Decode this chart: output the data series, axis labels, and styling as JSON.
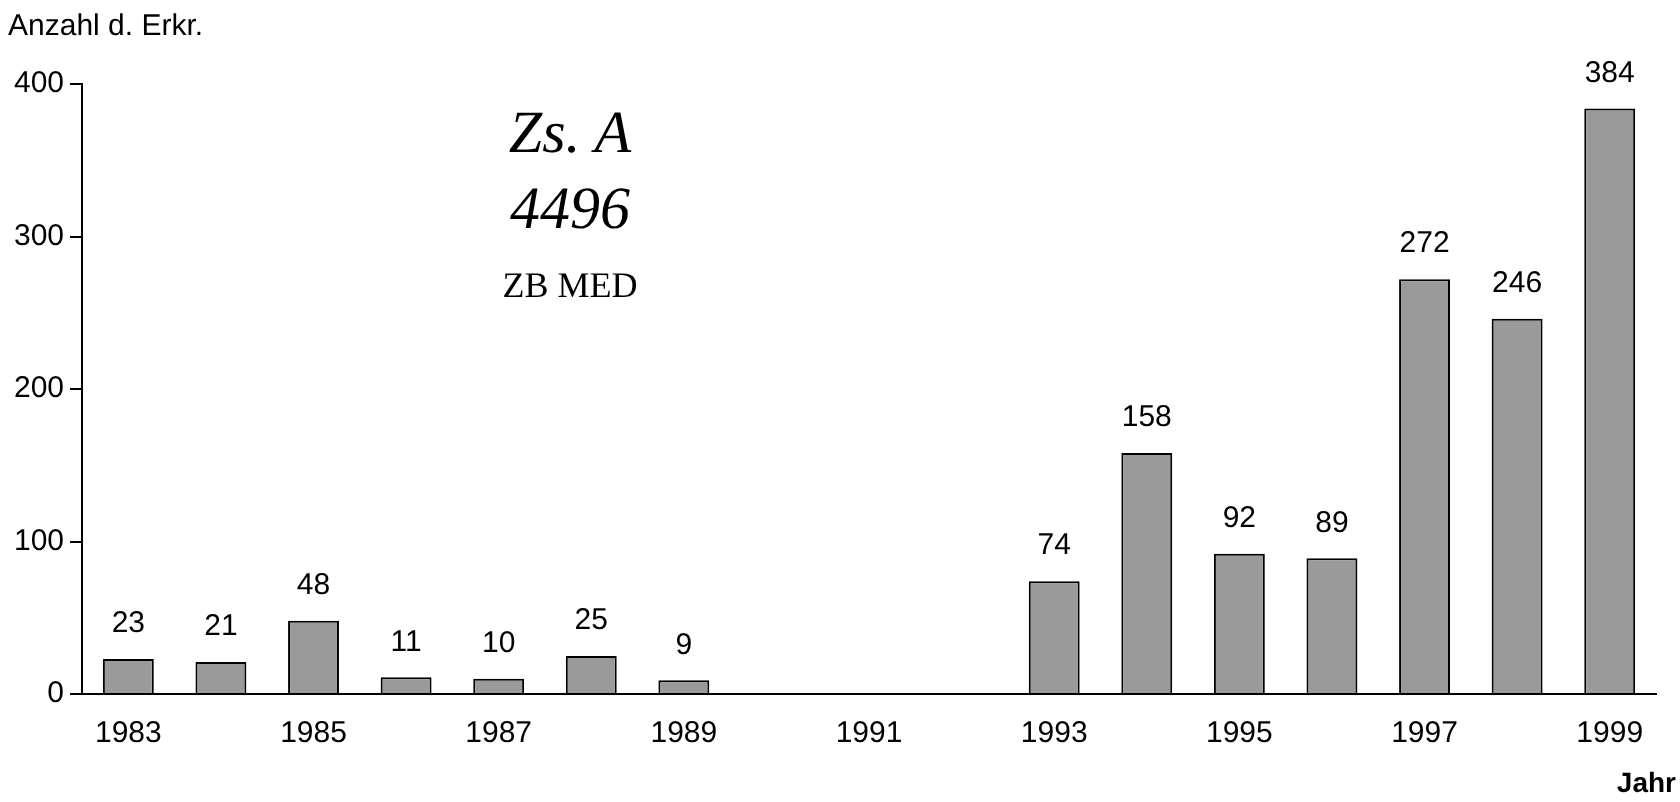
{
  "chart_data": {
    "type": "bar",
    "ylabel": "Anzahl d. Erkr.",
    "xlabel": "Jahr",
    "categories": [
      "1983",
      null,
      "1985",
      null,
      "1987",
      null,
      "1989",
      null,
      "1991",
      null,
      "1993",
      null,
      "1995",
      null,
      "1997",
      null,
      "1999"
    ],
    "values": [
      23,
      21,
      48,
      11,
      10,
      25,
      9,
      null,
      null,
      null,
      74,
      158,
      92,
      89,
      272,
      246,
      384
    ],
    "color": "#9a9a9a",
    "ylim": [
      0,
      400
    ],
    "yticks": [
      0,
      100,
      200,
      300,
      400
    ],
    "grid": false,
    "legend": false,
    "data_labels": true,
    "annotations": [
      "Zs. A",
      "4496",
      "ZB MED"
    ]
  }
}
